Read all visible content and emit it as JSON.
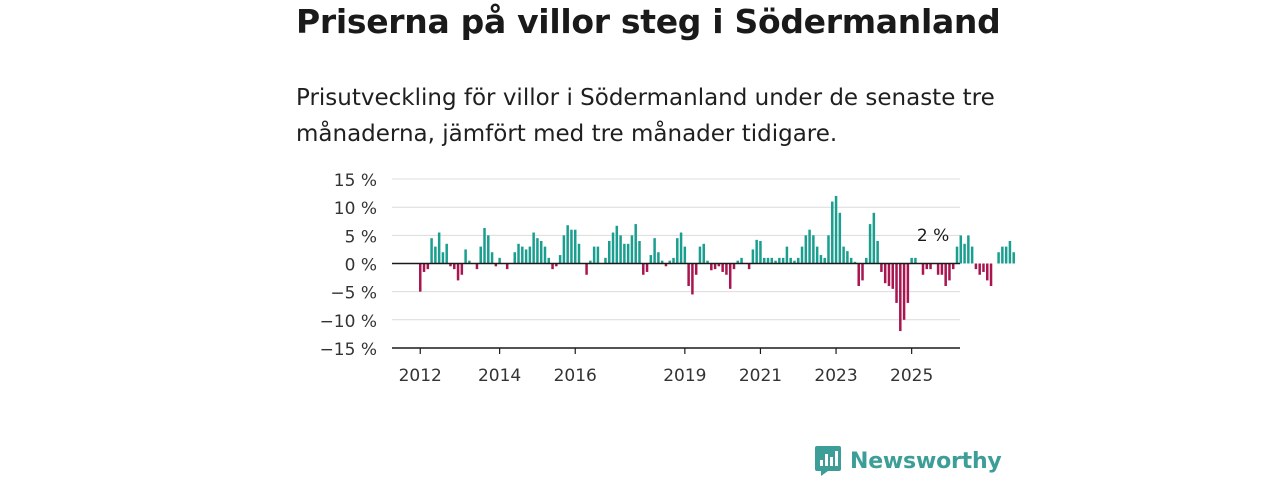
{
  "header": {
    "title": "Priserna på villor steg i Södermanland",
    "subtitle": "Prisutveckling för villor i Södermanland under de senaste tre månaderna, jämfört med tre månader tidigare."
  },
  "brand": {
    "name": "Newsworthy",
    "icon": "newsworthy-logo-icon",
    "color": "#3d9e97"
  },
  "chart_data": {
    "type": "bar",
    "ylim": [
      -15,
      15
    ],
    "yticks": [
      15,
      10,
      5,
      0,
      -5,
      -10,
      -15
    ],
    "ytick_labels": [
      "15 %",
      "10 %",
      "5 %",
      "0 %",
      "−5 %",
      "−10 %",
      "−15 %"
    ],
    "xtick_labels": [
      "2012",
      "2014",
      "2016",
      "2019",
      "2021",
      "2023",
      "2025"
    ],
    "xtick_index": [
      0,
      21,
      41,
      70,
      90,
      110,
      130
    ],
    "grid": true,
    "colors": {
      "positive": "#1a9e8f",
      "negative": "#a8154f"
    },
    "annotation": {
      "text": "2 %",
      "index": 136
    },
    "values": [
      -5,
      -1.5,
      -1,
      4.5,
      3,
      5.5,
      2,
      3.5,
      -0.5,
      -1,
      -3,
      -2,
      2.5,
      0.5,
      0,
      -1,
      3,
      6.3,
      5,
      2,
      -0.5,
      1,
      0,
      -1,
      0,
      2,
      3.5,
      3,
      2.5,
      3,
      5.5,
      4.5,
      4,
      3,
      1,
      -1,
      -0.5,
      1.5,
      5,
      6.8,
      6,
      6,
      3.5,
      0,
      -2,
      0.5,
      3,
      3,
      0,
      1,
      4,
      5.5,
      6.7,
      5,
      3.5,
      3.5,
      5,
      7,
      4,
      -2,
      -1.5,
      1.5,
      4.5,
      2,
      0.5,
      -0.5,
      0.5,
      1,
      4.5,
      5.5,
      3,
      -4,
      -5.5,
      -2,
      3,
      3.5,
      0.5,
      -1.2,
      -1,
      -0.5,
      -1.5,
      -2,
      -4.5,
      -1,
      0.5,
      1,
      0,
      -1,
      2.5,
      4.2,
      4,
      1,
      1,
      1,
      0.5,
      1,
      1,
      3,
      1,
      0.5,
      1,
      3,
      5,
      6,
      5,
      3,
      1.5,
      1,
      5,
      11,
      12,
      9,
      3,
      2.2,
      1,
      0.3,
      -4,
      -3,
      1,
      7,
      9,
      4,
      -1.5,
      -3.5,
      -4,
      -4.5,
      -7,
      -12,
      -10,
      -7,
      1,
      1,
      0,
      -2,
      -1,
      -1,
      0,
      -2,
      -2,
      -4,
      -3,
      -1,
      3,
      5,
      3.5,
      5,
      3,
      -1,
      -2,
      -1.5,
      -3,
      -4,
      0,
      2,
      3,
      3,
      4,
      2
    ]
  }
}
